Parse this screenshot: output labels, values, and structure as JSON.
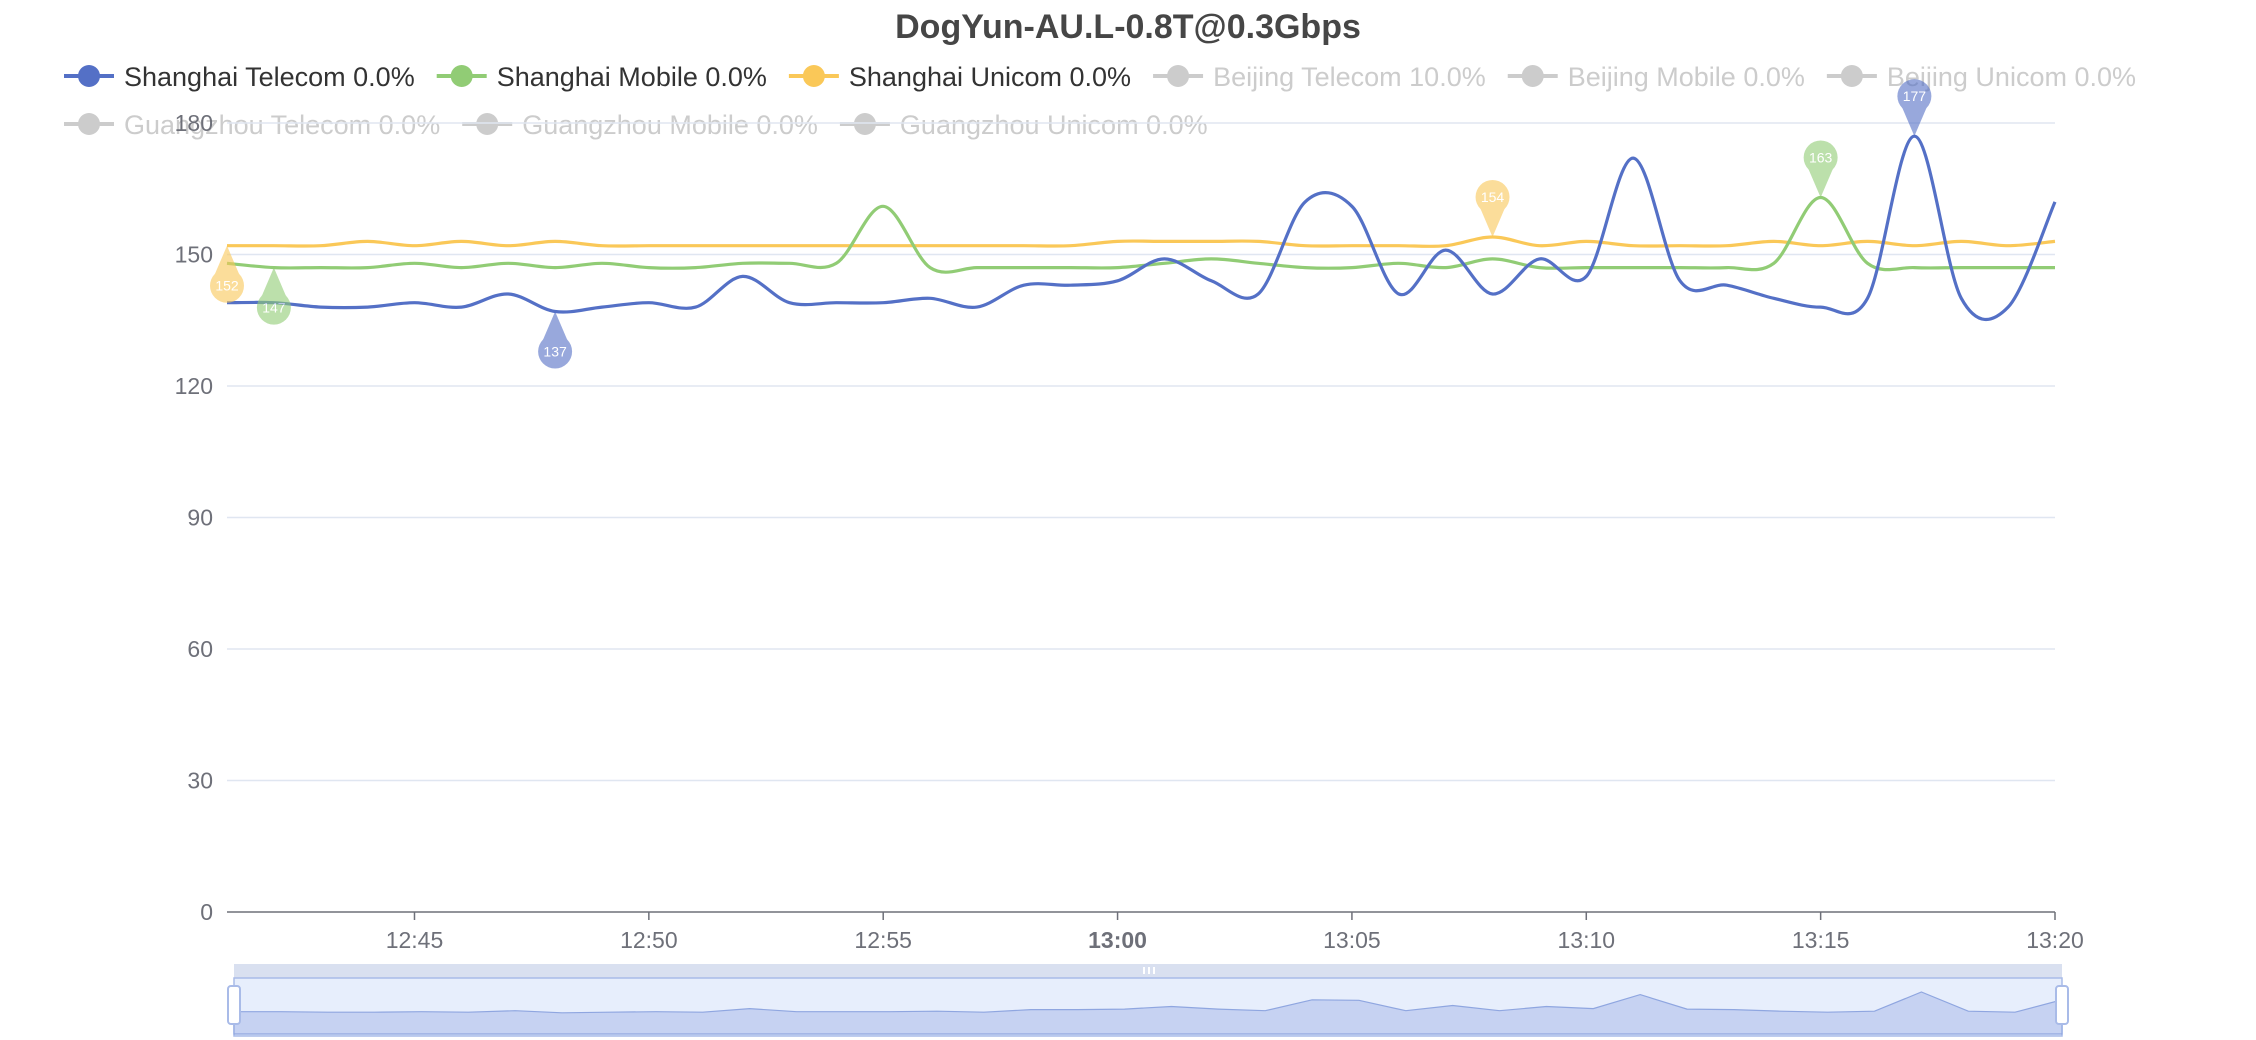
{
  "chart_data": {
    "type": "line",
    "title": "DogYun-AU.L-0.8T@0.3Gbps",
    "xlabel": "",
    "ylabel": "",
    "ylim": [
      0,
      180
    ],
    "yticks": [
      0,
      30,
      60,
      90,
      120,
      150,
      180
    ],
    "x_start": "12:41",
    "x_end": "13:20",
    "x_ticks": [
      "12:45",
      "12:50",
      "12:55",
      "13:00",
      "13:05",
      "13:10",
      "13:15",
      "13:20"
    ],
    "x_tick_bold": "13:00",
    "grid": true,
    "legend_position": "top",
    "data_zoom_slider": true,
    "x": [
      "12:41",
      "12:42",
      "12:43",
      "12:44",
      "12:45",
      "12:46",
      "12:47",
      "12:48",
      "12:49",
      "12:50",
      "12:51",
      "12:52",
      "12:53",
      "12:54",
      "12:55",
      "12:56",
      "12:57",
      "12:58",
      "12:59",
      "13:00",
      "13:01",
      "13:02",
      "13:03",
      "13:04",
      "13:05",
      "13:06",
      "13:07",
      "13:08",
      "13:09",
      "13:10",
      "13:11",
      "13:12",
      "13:13",
      "13:14",
      "13:15",
      "13:16",
      "13:17",
      "13:18",
      "13:19",
      "13:20"
    ],
    "series": [
      {
        "name": "Shanghai Telecom 0.0%",
        "color": "#5470c6",
        "visible": true,
        "values": [
          139,
          139,
          138,
          138,
          139,
          138,
          141,
          137,
          138,
          139,
          138,
          145,
          139,
          139,
          139,
          140,
          138,
          143,
          143,
          144,
          149,
          144,
          141,
          162,
          161,
          141,
          151,
          141,
          149,
          145,
          172,
          144,
          143,
          140,
          138,
          140,
          177,
          140,
          138,
          162
        ],
        "markers": [
          {
            "type": "min",
            "x": "12:48",
            "value": 137
          },
          {
            "type": "max",
            "x": "13:17",
            "value": 177
          }
        ]
      },
      {
        "name": "Shanghai Mobile 0.0%",
        "color": "#91cc75",
        "visible": true,
        "values": [
          148,
          147,
          147,
          147,
          148,
          147,
          148,
          147,
          148,
          147,
          147,
          148,
          148,
          148,
          161,
          147,
          147,
          147,
          147,
          147,
          148,
          149,
          148,
          147,
          147,
          148,
          147,
          149,
          147,
          147,
          147,
          147,
          147,
          148,
          163,
          148,
          147,
          147,
          147,
          147
        ],
        "markers": [
          {
            "type": "min",
            "x": "12:42",
            "value": 147
          },
          {
            "type": "max",
            "x": "13:15",
            "value": 163
          }
        ]
      },
      {
        "name": "Shanghai Unicom 0.0%",
        "color": "#fac858",
        "visible": true,
        "values": [
          152,
          152,
          152,
          153,
          152,
          153,
          152,
          153,
          152,
          152,
          152,
          152,
          152,
          152,
          152,
          152,
          152,
          152,
          152,
          153,
          153,
          153,
          153,
          152,
          152,
          152,
          152,
          154,
          152,
          153,
          152,
          152,
          152,
          153,
          152,
          153,
          152,
          153,
          152,
          153
        ],
        "markers": [
          {
            "type": "min",
            "x": "12:41",
            "value": 152
          },
          {
            "type": "max",
            "x": "13:08",
            "value": 154
          }
        ]
      },
      {
        "name": "Beijing Telecom 10.0%",
        "color": "#cccccc",
        "visible": false
      },
      {
        "name": "Beijing Mobile 0.0%",
        "color": "#cccccc",
        "visible": false
      },
      {
        "name": "Beijing Unicom 0.0%",
        "color": "#cccccc",
        "visible": false
      },
      {
        "name": "Guangzhou Telecom 0.0%",
        "color": "#cccccc",
        "visible": false
      },
      {
        "name": "Guangzhou Mobile 0.0%",
        "color": "#cccccc",
        "visible": false
      },
      {
        "name": "Guangzhou Unicom 0.0%",
        "color": "#cccccc",
        "visible": false
      }
    ]
  }
}
